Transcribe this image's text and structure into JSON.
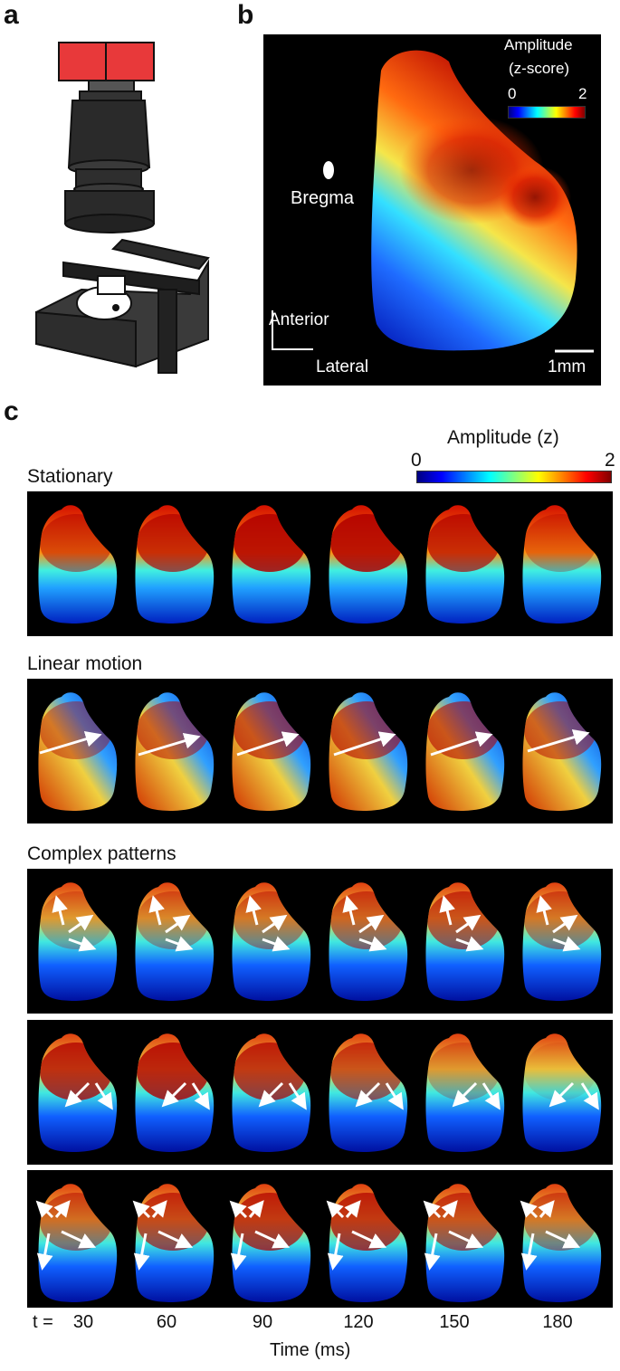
{
  "panels": {
    "a": {
      "letter": "a"
    },
    "b": {
      "letter": "b",
      "colorbar": {
        "title_line1": "Amplitude",
        "title_line2": "(z-score)",
        "min": "0",
        "max": "2"
      },
      "bregma_label": "Bregma",
      "axis_anterior": "Anterior",
      "axis_lateral": "Lateral",
      "scalebar_label": "1mm"
    },
    "c": {
      "letter": "c",
      "colorbar": {
        "title": "Amplitude (z)",
        "min": "0",
        "max": "2"
      },
      "rows": [
        {
          "label": "Stationary"
        },
        {
          "label": "Linear motion"
        },
        {
          "label": "Complex patterns"
        },
        {
          "label": ""
        },
        {
          "label": ""
        }
      ],
      "time_prefix": "t = ",
      "time_points": [
        "30",
        "60",
        "90",
        "120",
        "150",
        "180"
      ],
      "time_axis_label": "Time (ms)"
    }
  },
  "colors": {
    "colormap_low": "#000080",
    "colormap_mid": "#00ffff",
    "colormap_high": "#800000",
    "arrow": "#ffffff",
    "camera_housing": "#e8393a"
  }
}
